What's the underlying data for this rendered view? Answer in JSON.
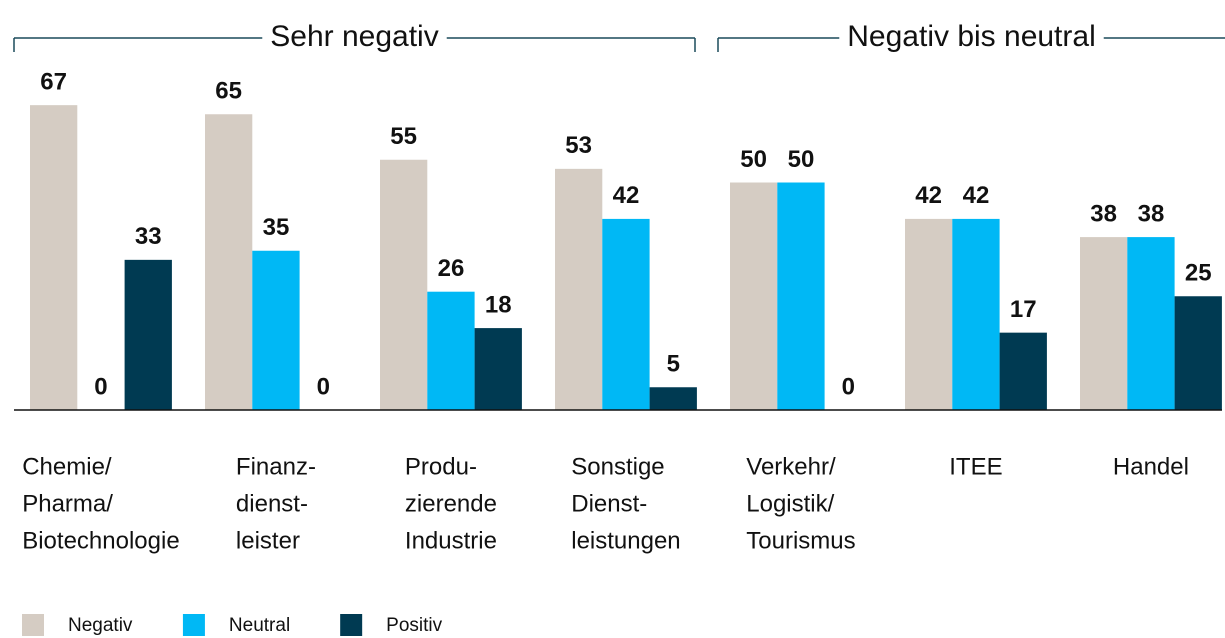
{
  "chart_data": {
    "type": "bar",
    "group_labels": [
      "Sehr negativ",
      "Negativ bis neutral"
    ],
    "categories": [
      [
        "Chemie/",
        "Pharma/",
        "Biotechnologie"
      ],
      [
        "Finanz-",
        "dienst-",
        "leister"
      ],
      [
        "Produ-",
        "zierende",
        "Industrie"
      ],
      [
        "Sonstige",
        "Dienst-",
        "leistungen"
      ],
      [
        "Verkehr/",
        "Logistik/",
        "Tourismus"
      ],
      [
        "ITEE"
      ],
      [
        "Handel"
      ]
    ],
    "series": [
      {
        "name": "Negativ",
        "color": "#d5ccc3",
        "values": [
          67,
          65,
          55,
          53,
          50,
          42,
          38
        ]
      },
      {
        "name": "Neutral",
        "color": "#00b8f5",
        "values": [
          0,
          35,
          26,
          42,
          50,
          42,
          38
        ]
      },
      {
        "name": "Positiv",
        "color": "#003a52",
        "values": [
          33,
          0,
          18,
          5,
          0,
          17,
          25
        ]
      }
    ]
  }
}
